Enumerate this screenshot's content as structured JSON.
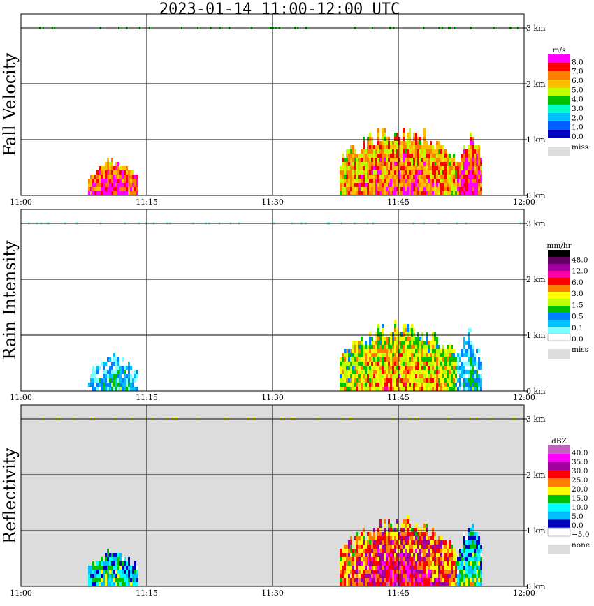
{
  "title": "2023-01-14   11:00-12:00 UTC",
  "x_ticks": [
    "11:00",
    "11:15",
    "11:30",
    "11:45",
    "12:00"
  ],
  "y_ticks": [
    "0 km",
    "1 km",
    "2 km",
    "3 km"
  ],
  "chart_data": [
    {
      "type": "heatmap",
      "ylabel": "Fall Velocity",
      "background": "#ffffff",
      "ylim": [
        0,
        3.2
      ],
      "colorbar": {
        "unit": "m/s",
        "labels": [
          "8.0",
          "7.0",
          "6.0",
          "5.0",
          "4.0",
          "3.0",
          "2.0",
          "1.0",
          "0.0"
        ],
        "colors": [
          "#ff00ff",
          "#ff0000",
          "#ff8000",
          "#ffc000",
          "#c0ff00",
          "#00c000",
          "#00ffc0",
          "#00c0ff",
          "#0060ff",
          "#0000c0"
        ],
        "missing_label": "miss",
        "missing_color": "#dcdcdc"
      },
      "echo_regions": [
        {
          "t_start": "11:38",
          "t_end": "11:52",
          "top_km": 1.1,
          "level_mid": 3
        },
        {
          "t_start": "11:52",
          "t_end": "11:55",
          "top_km": 1.0,
          "level_mid": 2
        },
        {
          "t_start": "11:08",
          "t_end": "11:14",
          "top_km": 0.55,
          "level_mid": 2
        }
      ]
    },
    {
      "type": "heatmap",
      "ylabel": "Rain Intensity",
      "background": "#ffffff",
      "ylim": [
        0,
        3.2
      ],
      "colorbar": {
        "unit": "mm/hr",
        "labels": [
          "48.0",
          "12.0",
          "6.0",
          "3.0",
          "1.5",
          "0.5",
          "0.1",
          "0.0"
        ],
        "colors": [
          "#000000",
          "#600060",
          "#a000a0",
          "#ff00a0",
          "#ff0000",
          "#ff8000",
          "#ffff00",
          "#c0ff00",
          "#00c000",
          "#0080ff",
          "#00c0ff",
          "#80ffff",
          "#ffffff"
        ],
        "missing_label": "miss",
        "missing_color": "#dcdcdc"
      },
      "echo_regions": [
        {
          "t_start": "11:38",
          "t_end": "11:52",
          "top_km": 1.1,
          "level_mid": 7
        },
        {
          "t_start": "11:52",
          "t_end": "11:55",
          "top_km": 1.0,
          "level_mid": 11
        },
        {
          "t_start": "11:08",
          "t_end": "11:14",
          "top_km": 0.55,
          "level_mid": 11
        }
      ]
    },
    {
      "type": "heatmap",
      "ylabel": "Reflectivity",
      "background": "#dcdcdc",
      "ylim": [
        0,
        3.2
      ],
      "colorbar": {
        "unit": "dBZ",
        "labels": [
          "40.0",
          "35.0",
          "30.0",
          "25.0",
          "20.0",
          "15.0",
          "10.0",
          "5.0",
          "0.0",
          "−5.0"
        ],
        "colors": [
          "#c060c0",
          "#ff00ff",
          "#a000a0",
          "#ff0000",
          "#ff8000",
          "#ffff00",
          "#00c000",
          "#00ffff",
          "#00c0ff",
          "#0000c0",
          "#ffffff"
        ],
        "missing_label": "none",
        "missing_color": "#dcdcdc"
      },
      "echo_regions": [
        {
          "t_start": "11:38",
          "t_end": "11:52",
          "top_km": 1.1,
          "level_mid": 4
        },
        {
          "t_start": "11:52",
          "t_end": "11:55",
          "top_km": 1.0,
          "level_mid": 8
        },
        {
          "t_start": "11:08",
          "t_end": "11:14",
          "top_km": 0.55,
          "level_mid": 8
        }
      ]
    }
  ]
}
